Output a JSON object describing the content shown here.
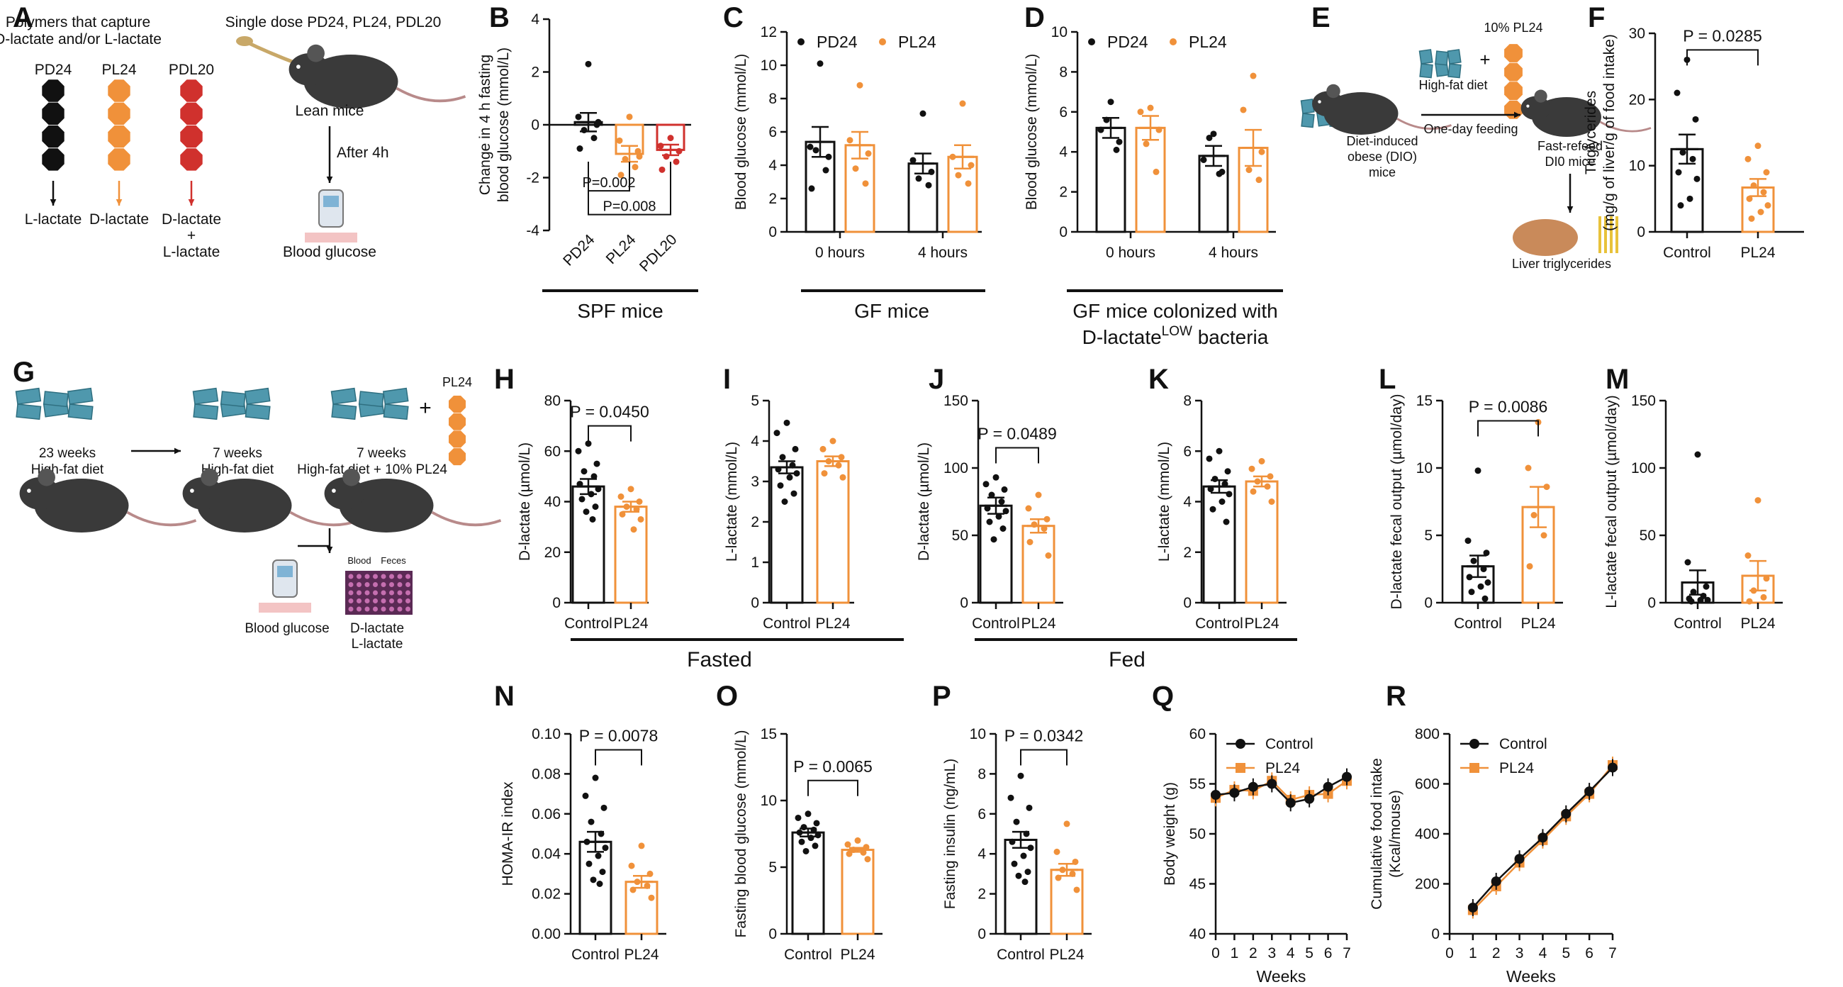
{
  "colors": {
    "black": "#111111",
    "orange": "#F0913A",
    "red": "#D0312D",
    "mouse": "#3a3a3a",
    "diet": "#4f98ad"
  },
  "labels": {
    "A": "A",
    "B": "B",
    "C": "C",
    "D": "D",
    "E": "E",
    "F": "F",
    "G": "G",
    "H": "H",
    "I": "I",
    "J": "J",
    "K": "K",
    "L": "L",
    "M": "M",
    "N": "N",
    "O": "O",
    "P": "P",
    "Q": "Q",
    "R": "R"
  },
  "panel_A": {
    "title_line1": "Polymers that capture",
    "title_line2": "D-lactate and/or L-lactate",
    "polymers": [
      {
        "name": "PD24",
        "color": "black",
        "product": "L-lactate"
      },
      {
        "name": "PL24",
        "color": "orange",
        "product": "D-lactate"
      },
      {
        "name": "PDL20",
        "color": "red",
        "product": "D-lactate\n+\nL-lactate"
      }
    ],
    "dose_text": "Single dose PD24, PL24, PDL20",
    "mouse_label": "Lean mice",
    "after_text": "After 4h",
    "readout": "Blood glucose"
  },
  "panel_E": {
    "dio_label_1": "Diet-induced",
    "dio_label_2": "obese (DIO)",
    "dio_label_3": "mice",
    "pl_text": "10% PL24",
    "plus": "+",
    "diet_text": "High-fat diet",
    "feeding_text": "One-day feeding",
    "refeed_1": "Fast-refeed",
    "refeed_2": "DI0 mice",
    "liver_text": "Liver triglycerides"
  },
  "panel_G": {
    "stage1_1": "23 weeks",
    "stage1_2": "High-fat diet",
    "stage2_1": "7 weeks",
    "stage2_2": "High-fat diet",
    "stage3_1": "7 weeks",
    "stage3_2": "High-fat diet + 10% PL24",
    "pl_label": "PL24",
    "plus": "+",
    "blood": "Blood",
    "feces": "Feces",
    "out1": "Blood glucose",
    "out2_1": "D-lactate",
    "out2_2": "L-lactate"
  },
  "group_labels": {
    "spf": "SPF mice",
    "gf": "GF mice",
    "gfcol_1": "GF mice colonized with",
    "gfcol_2a": "D-lactate",
    "gfcol_2sup": "LOW",
    "gfcol_2b": " bacteria",
    "fasted": "Fasted",
    "fed": "Fed"
  },
  "chart_data": [
    {
      "id": "B",
      "type": "bar",
      "ylabel_line1": "Change in 4 h fasting",
      "ylabel_line2": "blood glucose (mmol/L)",
      "ylim": [
        -4,
        4
      ],
      "yticks": [
        -4,
        -2,
        0,
        2,
        4
      ],
      "ytick_labels": [
        "-4",
        "-2",
        "0",
        "2",
        "4"
      ],
      "categories": [
        "PD24",
        "PL24",
        "PDL20"
      ],
      "colors": [
        "black",
        "orange",
        "red"
      ],
      "means": [
        0.1,
        -1.1,
        -0.95
      ],
      "sems": [
        0.35,
        0.3,
        0.2
      ],
      "points": [
        [
          2.3,
          0.3,
          0.0,
          -0.2,
          -0.5,
          -0.9,
          0.1
        ],
        [
          0.3,
          -0.6,
          -1.0,
          -1.3,
          -1.6,
          -1.9,
          -1.2
        ],
        [
          -0.5,
          -0.8,
          -1.0,
          -1.2,
          -1.4,
          -1.7
        ]
      ],
      "rotate_xticks": true,
      "sig": [
        {
          "label": "P=0.002",
          "from": 0,
          "to": 1,
          "y": -2.5
        },
        {
          "label": "P=0.008",
          "from": 0,
          "to": 2,
          "y": -3.4
        }
      ]
    },
    {
      "id": "C",
      "type": "bar",
      "ylabel_line1": "Blood glucose (mmol/L)",
      "ylim": [
        0,
        12
      ],
      "yticks": [
        0,
        2,
        4,
        6,
        8,
        10,
        12
      ],
      "ytick_labels": [
        "0",
        "2",
        "4",
        "6",
        "8",
        "10",
        "12"
      ],
      "categories": [
        "0 hours",
        "4 hours"
      ],
      "series": [
        {
          "name": "PD24",
          "color": "black",
          "means": [
            5.4,
            4.1
          ],
          "sems": [
            0.9,
            0.6
          ],
          "points": [
            [
              10.1,
              5.1,
              4.5,
              4.9,
              3.7,
              2.6
            ],
            [
              7.1,
              4.3,
              3.6,
              3.2,
              2.8
            ]
          ]
        },
        {
          "name": "PL24",
          "color": "orange",
          "means": [
            5.2,
            4.5
          ],
          "sems": [
            0.8,
            0.7
          ],
          "points": [
            [
              8.8,
              5.5,
              4.7,
              3.8,
              2.9
            ],
            [
              7.7,
              4.5,
              4.0,
              3.4,
              2.9
            ]
          ]
        }
      ],
      "legend": true
    },
    {
      "id": "D",
      "type": "bar",
      "ylabel_line1": "Blood glucose (mmol/L)",
      "ylim": [
        0,
        10
      ],
      "yticks": [
        0,
        2,
        4,
        6,
        8,
        10
      ],
      "ytick_labels": [
        "0",
        "2",
        "4",
        "6",
        "8",
        "10"
      ],
      "categories": [
        "0 hours",
        "4 hours"
      ],
      "series": [
        {
          "name": "PD24",
          "color": "black",
          "means": [
            5.2,
            3.8
          ],
          "sems": [
            0.5,
            0.5
          ],
          "points": [
            [
              6.5,
              5.1,
              4.5,
              5.6,
              4.1
            ],
            [
              4.9,
              3.6,
              3.0,
              4.7,
              2.9
            ]
          ]
        },
        {
          "name": "PL24",
          "color": "orange",
          "means": [
            5.2,
            4.2
          ],
          "sems": [
            0.6,
            0.9
          ],
          "points": [
            [
              6.2,
              6.0,
              5.1,
              4.4,
              3.0
            ],
            [
              7.8,
              6.1,
              4.0,
              3.1,
              2.6
            ]
          ]
        }
      ],
      "legend": true
    },
    {
      "id": "F",
      "type": "bar",
      "ylabel_line1": "Triglycerides",
      "ylabel_line2": "(mg/g of liver/g of food intake)",
      "ylim": [
        0,
        30
      ],
      "yticks": [
        0,
        10,
        20,
        30
      ],
      "ytick_labels": [
        "0",
        "10",
        "20",
        "30"
      ],
      "categories": [
        "Control",
        "PL24"
      ],
      "colors": [
        "black",
        "orange"
      ],
      "means": [
        12.5,
        6.7
      ],
      "sems": [
        2.2,
        1.3
      ],
      "points": [
        [
          26,
          21,
          17,
          12,
          11,
          9,
          8,
          5,
          4
        ],
        [
          13,
          11,
          9,
          7,
          6,
          5,
          4,
          3,
          2
        ]
      ],
      "sig": [
        {
          "label": "P = 0.0285",
          "from": 0,
          "to": 1,
          "y": 27.5
        }
      ]
    },
    {
      "id": "H",
      "type": "bar",
      "ylabel_line1": "D-lactate (µmol/L)",
      "ylim": [
        0,
        80
      ],
      "yticks": [
        0,
        20,
        40,
        60,
        80
      ],
      "ytick_labels": [
        "0",
        "20",
        "40",
        "60",
        "80"
      ],
      "categories": [
        "Control",
        "PL24"
      ],
      "colors": [
        "black",
        "orange"
      ],
      "means": [
        46,
        38
      ],
      "sems": [
        3,
        2
      ],
      "points": [
        [
          63,
          60,
          55,
          52,
          50,
          47,
          45,
          43,
          41,
          38,
          36,
          33
        ],
        [
          45,
          42,
          40,
          38,
          37,
          35,
          33,
          29
        ]
      ],
      "sig": [
        {
          "label": "P = 0.0450",
          "from": 0,
          "to": 1,
          "y": 70
        }
      ]
    },
    {
      "id": "I",
      "type": "bar",
      "ylabel_line1": "L-lactate (mmol/L)",
      "ylim": [
        0,
        5
      ],
      "yticks": [
        0,
        1,
        2,
        3,
        4,
        5
      ],
      "ytick_labels": [
        "0",
        "1",
        "2",
        "3",
        "4",
        "5"
      ],
      "categories": [
        "Control",
        "PL24"
      ],
      "colors": [
        "black",
        "orange"
      ],
      "means": [
        3.35,
        3.5
      ],
      "sems": [
        0.15,
        0.12
      ],
      "points": [
        [
          4.45,
          4.2,
          3.8,
          3.6,
          3.4,
          3.3,
          3.2,
          3.1,
          2.9,
          2.7,
          2.5
        ],
        [
          4.0,
          3.8,
          3.6,
          3.5,
          3.4,
          3.2,
          3.1
        ]
      ]
    },
    {
      "id": "J",
      "type": "bar",
      "ylabel_line1": "D-lactate (µmol/L)",
      "ylim": [
        0,
        150
      ],
      "yticks": [
        0,
        50,
        100,
        150
      ],
      "ytick_labels": [
        "0",
        "50",
        "100",
        "150"
      ],
      "categories": [
        "Control",
        "PL24"
      ],
      "colors": [
        "black",
        "orange"
      ],
      "means": [
        72,
        57
      ],
      "sems": [
        6,
        5
      ],
      "points": [
        [
          93,
          88,
          84,
          80,
          75,
          70,
          68,
          64,
          60,
          55,
          47
        ],
        [
          80,
          70,
          62,
          58,
          55,
          45,
          35
        ]
      ],
      "sig": [
        {
          "label": "P = 0.0489",
          "from": 0,
          "to": 1,
          "y": 115
        }
      ]
    },
    {
      "id": "K",
      "type": "bar",
      "ylabel_line1": "L-lactate (mmol/L)",
      "ylim": [
        0,
        8
      ],
      "yticks": [
        0,
        2,
        4,
        6,
        8
      ],
      "ytick_labels": [
        "0",
        "2",
        "4",
        "6",
        "8"
      ],
      "categories": [
        "Control",
        "PL24"
      ],
      "colors": [
        "black",
        "orange"
      ],
      "means": [
        4.6,
        4.8
      ],
      "sems": [
        0.25,
        0.2
      ],
      "points": [
        [
          6.0,
          5.7,
          5.2,
          4.9,
          4.7,
          4.5,
          4.3,
          4.0,
          3.7,
          3.2
        ],
        [
          5.6,
          5.3,
          5.0,
          4.8,
          4.6,
          4.4,
          4.0
        ]
      ]
    },
    {
      "id": "L",
      "type": "bar",
      "ylabel_line1": "D-lactate fecal output (µmol/day)",
      "ylim": [
        0,
        15
      ],
      "yticks": [
        0,
        5,
        10,
        15
      ],
      "ytick_labels": [
        "0",
        "5",
        "10",
        "15"
      ],
      "categories": [
        "Control",
        "PL24"
      ],
      "colors": [
        "black",
        "orange"
      ],
      "means": [
        2.7,
        7.1
      ],
      "sems": [
        0.8,
        1.5
      ],
      "points": [
        [
          9.8,
          4.6,
          3.7,
          3.1,
          2.5,
          1.9,
          1.5,
          1.2,
          0.8,
          0.3
        ],
        [
          13.4,
          10.0,
          8.6,
          6.5,
          5.0,
          2.7
        ]
      ],
      "sig": [
        {
          "label": "P = 0.0086",
          "from": 0,
          "to": 1,
          "y": 13.5
        }
      ]
    },
    {
      "id": "M",
      "type": "bar",
      "ylabel_line1": "L-lactate fecal output (µmol/day)",
      "ylim": [
        0,
        150
      ],
      "yticks": [
        0,
        50,
        100,
        150
      ],
      "ytick_labels": [
        "0",
        "50",
        "100",
        "150"
      ],
      "categories": [
        "Control",
        "PL24"
      ],
      "colors": [
        "black",
        "orange"
      ],
      "means": [
        15,
        20
      ],
      "sems": [
        9,
        11
      ],
      "points": [
        [
          110,
          30,
          12,
          8,
          5,
          3,
          2,
          2,
          1
        ],
        [
          76,
          35,
          18,
          9,
          4,
          1
        ]
      ]
    },
    {
      "id": "N",
      "type": "bar",
      "ylabel_line1": "HOMA-IR index",
      "ylim": [
        0,
        0.1
      ],
      "yticks": [
        0,
        0.02,
        0.04,
        0.06,
        0.08,
        0.1
      ],
      "ytick_labels": [
        "0.00",
        "0.02",
        "0.04",
        "0.06",
        "0.08",
        "0.10"
      ],
      "categories": [
        "Control",
        "PL24"
      ],
      "colors": [
        "black",
        "orange"
      ],
      "means": [
        0.046,
        0.026
      ],
      "sems": [
        0.005,
        0.003
      ],
      "points": [
        [
          0.078,
          0.069,
          0.063,
          0.056,
          0.05,
          0.046,
          0.043,
          0.039,
          0.035,
          0.031,
          0.027,
          0.025
        ],
        [
          0.044,
          0.034,
          0.03,
          0.026,
          0.024,
          0.022,
          0.018
        ]
      ],
      "sig": [
        {
          "label": "P = 0.0078",
          "from": 0,
          "to": 1,
          "y": 0.092
        }
      ]
    },
    {
      "id": "O",
      "type": "bar",
      "ylabel_line1": "Fasting blood glucose (mmol/L)",
      "ylim": [
        0,
        15
      ],
      "yticks": [
        0,
        5,
        10,
        15
      ],
      "ytick_labels": [
        "0",
        "5",
        "10",
        "15"
      ],
      "categories": [
        "Control",
        "PL24"
      ],
      "colors": [
        "black",
        "orange"
      ],
      "means": [
        7.6,
        6.3
      ],
      "sems": [
        0.3,
        0.15
      ],
      "points": [
        [
          9.0,
          8.7,
          8.3,
          8.0,
          7.8,
          7.6,
          7.4,
          7.2,
          6.9,
          6.6,
          6.2
        ],
        [
          7.0,
          6.7,
          6.5,
          6.3,
          6.1,
          6.0,
          5.6
        ]
      ],
      "sig": [
        {
          "label": "P = 0.0065",
          "from": 0,
          "to": 1,
          "y": 11.5
        }
      ]
    },
    {
      "id": "P",
      "type": "bar",
      "ylabel_line1": "Fasting insulin (ng/mL)",
      "ylim": [
        0,
        10
      ],
      "yticks": [
        0,
        2,
        4,
        6,
        8,
        10
      ],
      "ytick_labels": [
        "0",
        "2",
        "4",
        "6",
        "8",
        "10"
      ],
      "categories": [
        "Control",
        "PL24"
      ],
      "colors": [
        "black",
        "orange"
      ],
      "means": [
        4.7,
        3.2
      ],
      "sems": [
        0.4,
        0.3
      ],
      "points": [
        [
          7.9,
          6.8,
          6.3,
          5.6,
          5.0,
          4.6,
          4.3,
          3.9,
          3.5,
          3.1,
          2.9,
          2.6
        ],
        [
          5.5,
          4.1,
          3.6,
          3.2,
          3.0,
          2.8,
          2.2
        ]
      ],
      "sig": [
        {
          "label": "P = 0.0342",
          "from": 0,
          "to": 1,
          "y": 9.2
        }
      ]
    },
    {
      "id": "Q",
      "type": "line",
      "xlabel": "Weeks",
      "ylabel_line1": "Body weight (g)",
      "ylim": [
        40,
        60
      ],
      "yticks": [
        40,
        45,
        50,
        55,
        60
      ],
      "ytick_labels": [
        "40",
        "45",
        "50",
        "55",
        "60"
      ],
      "x": [
        0,
        1,
        2,
        3,
        4,
        5,
        6,
        7
      ],
      "xticks": [
        0,
        1,
        2,
        3,
        4,
        5,
        6,
        7
      ],
      "series": [
        {
          "name": "Control",
          "color": "black",
          "marker": "circle",
          "values": [
            53.9,
            54.1,
            54.7,
            55.0,
            53.1,
            53.5,
            54.7,
            55.7
          ]
        },
        {
          "name": "PL24",
          "color": "orange",
          "marker": "square",
          "values": [
            53.6,
            54.4,
            54.3,
            55.3,
            53.4,
            53.9,
            54.0,
            55.3
          ]
        }
      ]
    },
    {
      "id": "R",
      "type": "line",
      "xlabel": "Weeks",
      "ylabel_line1": "Cumulative food intake",
      "ylabel_line2": "(Kcal/mouse)",
      "ylim": [
        0,
        800
      ],
      "yticks": [
        0,
        200,
        400,
        600,
        800
      ],
      "ytick_labels": [
        "0",
        "200",
        "400",
        "600",
        "800"
      ],
      "x": [
        1,
        2,
        3,
        4,
        5,
        6,
        7
      ],
      "xticks": [
        0,
        1,
        2,
        3,
        4,
        5,
        6,
        7
      ],
      "series": [
        {
          "name": "Control",
          "color": "black",
          "marker": "circle",
          "values": [
            105,
            210,
            300,
            385,
            480,
            570,
            665
          ]
        },
        {
          "name": "PL24",
          "color": "orange",
          "marker": "square",
          "values": [
            95,
            190,
            285,
            375,
            470,
            560,
            675
          ]
        }
      ]
    }
  ]
}
